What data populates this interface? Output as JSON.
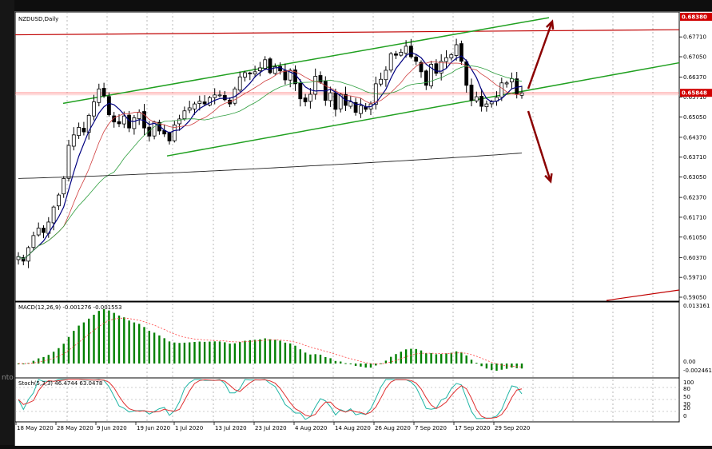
{
  "chart_data": {
    "type": "candlestick",
    "symbol_title": "NZDUSD,Daily",
    "price_axis": {
      "ticks": [
        "0.67710",
        "0.67050",
        "0.66370",
        "0.65710",
        "0.65050",
        "0.64370",
        "0.63710",
        "0.63050",
        "0.62370",
        "0.61710",
        "0.61050",
        "0.60370",
        "0.59710",
        "0.59050"
      ],
      "tag_top": "0.68380",
      "tag_current": "0.65848",
      "ylim": [
        0.5905,
        0.6838
      ]
    },
    "dates": [
      "18 May 2020",
      "28 May 2020",
      "9 Jun 2020",
      "19 Jun 2020",
      "1 Jul 2020",
      "13 Jul 2020",
      "23 Jul 2020",
      "4 Aug 2020",
      "14 Aug 2020",
      "26 Aug 2020",
      "7 Sep 2020",
      "17 Sep 2020",
      "29 Sep 2020"
    ],
    "close_series": [
      0.604,
      0.6025,
      0.607,
      0.611,
      0.6135,
      0.612,
      0.6155,
      0.6205,
      0.6245,
      0.63,
      0.641,
      0.6445,
      0.647,
      0.6455,
      0.651,
      0.6555,
      0.6598,
      0.6575,
      0.6512,
      0.6488,
      0.6482,
      0.6508,
      0.6468,
      0.6502,
      0.652,
      0.6468,
      0.6441,
      0.6488,
      0.6458,
      0.6448,
      0.6425,
      0.6478,
      0.6498,
      0.6525,
      0.6535,
      0.6548,
      0.6557,
      0.6548,
      0.6569,
      0.6578,
      0.6578,
      0.6562,
      0.6548,
      0.6598,
      0.6638,
      0.6652,
      0.6648,
      0.6655,
      0.6668,
      0.6695,
      0.6652,
      0.6672,
      0.6658,
      0.6628,
      0.666,
      0.6615,
      0.6565,
      0.6555,
      0.658,
      0.664,
      0.662,
      0.656,
      0.6585,
      0.653,
      0.658,
      0.6543,
      0.6555,
      0.652,
      0.6542,
      0.653,
      0.6548,
      0.6615,
      0.663,
      0.666,
      0.6715,
      0.671,
      0.672,
      0.674,
      0.6705,
      0.669,
      0.6655,
      0.661,
      0.668,
      0.665,
      0.669,
      0.6702,
      0.6712,
      0.6745,
      0.669,
      0.661,
      0.656,
      0.6572,
      0.654,
      0.6548,
      0.6555,
      0.657,
      0.6618,
      0.6618,
      0.6632,
      0.658,
      0.6585
    ],
    "indicators": {
      "macd": {
        "label": "MACD(12,26,9) -0.001276 -0.001553",
        "axis": [
          "0.013161",
          "0.00",
          "-0.002461"
        ]
      },
      "stoch": {
        "label": "Stoch(5,3,3) 46.4744 63.0478",
        "axis": [
          "100",
          "80",
          "50",
          "30",
          "20",
          "0"
        ]
      }
    },
    "grid": true
  }
}
